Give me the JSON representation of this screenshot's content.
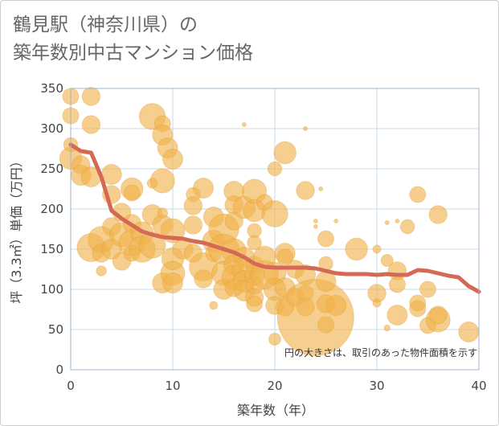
{
  "title": {
    "line1": "鶴見駅（神奈川県）の",
    "line2": "築年数別中古マンション価格"
  },
  "note": "円の大きさは、取引のあった物件面積を示す",
  "colors": {
    "bubble_fill": "#f0b24a",
    "bubble_stroke": "#e09a2e",
    "trend_line": "#d46a55",
    "grid": "#c9d9e8",
    "plot_border": "#9db5cc"
  },
  "chart_data": {
    "type": "scatter",
    "title": "鶴見駅（神奈川県）の築年数別中古マンション価格",
    "xlabel": "築年数（年）",
    "ylabel": "坪（3.3㎡）単価（万円）",
    "xlim": [
      0,
      40
    ],
    "ylim": [
      0,
      350
    ],
    "x_ticks": [
      "0",
      "10",
      "20",
      "30",
      "40"
    ],
    "y_ticks": [
      "0",
      "50",
      "100",
      "150",
      "200",
      "250",
      "300",
      "350"
    ],
    "grid": true,
    "trend": {
      "x": [
        0,
        1,
        2,
        3,
        4,
        5,
        6,
        7,
        8,
        9,
        10,
        11,
        12,
        13,
        14,
        15,
        16,
        17,
        18,
        19,
        20,
        21,
        22,
        23,
        24,
        25,
        26,
        27,
        28,
        29,
        30,
        31,
        32,
        33,
        34,
        35,
        36,
        37,
        38,
        39,
        40
      ],
      "y": [
        280,
        272,
        270,
        240,
        198,
        188,
        180,
        172,
        168,
        165,
        164,
        163,
        160,
        158,
        154,
        150,
        146,
        140,
        132,
        128,
        127,
        127,
        127,
        127,
        126,
        123,
        120,
        119,
        119,
        119,
        118,
        119,
        118,
        118,
        124,
        123,
        120,
        117,
        115,
        104,
        97
      ]
    },
    "points": [
      {
        "x": 0,
        "y": 340,
        "s": 8
      },
      {
        "x": 0,
        "y": 316,
        "s": 8
      },
      {
        "x": 0,
        "y": 263,
        "s": 11
      },
      {
        "x": 0,
        "y": 280,
        "s": 7
      },
      {
        "x": 2,
        "y": 340,
        "s": 9
      },
      {
        "x": 2,
        "y": 305,
        "s": 9
      },
      {
        "x": 1,
        "y": 255,
        "s": 9
      },
      {
        "x": 1,
        "y": 242,
        "s": 10
      },
      {
        "x": 2,
        "y": 240,
        "s": 10
      },
      {
        "x": 2,
        "y": 152,
        "s": 14
      },
      {
        "x": 3,
        "y": 162,
        "s": 13
      },
      {
        "x": 3,
        "y": 145,
        "s": 9
      },
      {
        "x": 3,
        "y": 123,
        "s": 5
      },
      {
        "x": 4,
        "y": 243,
        "s": 10
      },
      {
        "x": 4,
        "y": 218,
        "s": 9
      },
      {
        "x": 4,
        "y": 178,
        "s": 9
      },
      {
        "x": 4,
        "y": 150,
        "s": 10
      },
      {
        "x": 5,
        "y": 168,
        "s": 12
      },
      {
        "x": 5,
        "y": 135,
        "s": 9
      },
      {
        "x": 5,
        "y": 196,
        "s": 9
      },
      {
        "x": 6,
        "y": 225,
        "s": 11
      },
      {
        "x": 6,
        "y": 220,
        "s": 8
      },
      {
        "x": 6,
        "y": 182,
        "s": 9
      },
      {
        "x": 6,
        "y": 158,
        "s": 13
      },
      {
        "x": 6,
        "y": 145,
        "s": 8
      },
      {
        "x": 7,
        "y": 170,
        "s": 11
      },
      {
        "x": 7,
        "y": 150,
        "s": 13
      },
      {
        "x": 8,
        "y": 315,
        "s": 13
      },
      {
        "x": 8,
        "y": 193,
        "s": 10
      },
      {
        "x": 8,
        "y": 155,
        "s": 13
      },
      {
        "x": 8,
        "y": 232,
        "s": 5
      },
      {
        "x": 9,
        "y": 306,
        "s": 8
      },
      {
        "x": 9,
        "y": 292,
        "s": 10
      },
      {
        "x": 9,
        "y": 235,
        "s": 12
      },
      {
        "x": 9,
        "y": 180,
        "s": 10
      },
      {
        "x": 9,
        "y": 195,
        "s": 5
      },
      {
        "x": 9,
        "y": 108,
        "s": 10
      },
      {
        "x": 9.5,
        "y": 276,
        "s": 10
      },
      {
        "x": 10,
        "y": 262,
        "s": 10
      },
      {
        "x": 10,
        "y": 173,
        "s": 12
      },
      {
        "x": 10,
        "y": 138,
        "s": 11
      },
      {
        "x": 10,
        "y": 120,
        "s": 12
      },
      {
        "x": 10,
        "y": 108,
        "s": 10
      },
      {
        "x": 11,
        "y": 150,
        "s": 10
      },
      {
        "x": 12,
        "y": 218,
        "s": 7
      },
      {
        "x": 12,
        "y": 204,
        "s": 9
      },
      {
        "x": 12,
        "y": 180,
        "s": 9
      },
      {
        "x": 12,
        "y": 145,
        "s": 9
      },
      {
        "x": 13,
        "y": 226,
        "s": 10
      },
      {
        "x": 13,
        "y": 128,
        "s": 14
      },
      {
        "x": 13,
        "y": 113,
        "s": 9
      },
      {
        "x": 14,
        "y": 190,
        "s": 10
      },
      {
        "x": 14,
        "y": 160,
        "s": 11
      },
      {
        "x": 14,
        "y": 145,
        "s": 8
      },
      {
        "x": 14,
        "y": 80,
        "s": 4
      },
      {
        "x": 15,
        "y": 175,
        "s": 15
      },
      {
        "x": 15,
        "y": 150,
        "s": 15
      },
      {
        "x": 15,
        "y": 120,
        "s": 12
      },
      {
        "x": 15,
        "y": 100,
        "s": 10
      },
      {
        "x": 16,
        "y": 222,
        "s": 10
      },
      {
        "x": 16,
        "y": 205,
        "s": 9
      },
      {
        "x": 16,
        "y": 185,
        "s": 9
      },
      {
        "x": 16,
        "y": 148,
        "s": 12
      },
      {
        "x": 16,
        "y": 130,
        "s": 10
      },
      {
        "x": 16,
        "y": 115,
        "s": 12
      },
      {
        "x": 16,
        "y": 102,
        "s": 9
      },
      {
        "x": 17,
        "y": 305,
        "s": 2
      },
      {
        "x": 17,
        "y": 202,
        "s": 11
      },
      {
        "x": 17,
        "y": 140,
        "s": 10
      },
      {
        "x": 17,
        "y": 125,
        "s": 12
      },
      {
        "x": 17,
        "y": 110,
        "s": 11
      },
      {
        "x": 17,
        "y": 98,
        "s": 10
      },
      {
        "x": 18,
        "y": 222,
        "s": 12
      },
      {
        "x": 18,
        "y": 198,
        "s": 11
      },
      {
        "x": 18,
        "y": 173,
        "s": 7
      },
      {
        "x": 18,
        "y": 158,
        "s": 7
      },
      {
        "x": 18,
        "y": 130,
        "s": 9
      },
      {
        "x": 18,
        "y": 118,
        "s": 10
      },
      {
        "x": 18,
        "y": 105,
        "s": 9
      },
      {
        "x": 18,
        "y": 90,
        "s": 9
      },
      {
        "x": 18,
        "y": 82,
        "s": 8
      },
      {
        "x": 19,
        "y": 208,
        "s": 8
      },
      {
        "x": 19,
        "y": 140,
        "s": 11
      },
      {
        "x": 19,
        "y": 118,
        "s": 14
      },
      {
        "x": 20,
        "y": 250,
        "s": 7
      },
      {
        "x": 20,
        "y": 194,
        "s": 13
      },
      {
        "x": 20,
        "y": 120,
        "s": 11
      },
      {
        "x": 20,
        "y": 100,
        "s": 11
      },
      {
        "x": 20,
        "y": 80,
        "s": 9
      },
      {
        "x": 20,
        "y": 38,
        "s": 6
      },
      {
        "x": 21,
        "y": 270,
        "s": 11
      },
      {
        "x": 21,
        "y": 145,
        "s": 10
      },
      {
        "x": 21,
        "y": 140,
        "s": 8
      },
      {
        "x": 21,
        "y": 102,
        "s": 10
      },
      {
        "x": 21,
        "y": 78,
        "s": 9
      },
      {
        "x": 22,
        "y": 125,
        "s": 9
      },
      {
        "x": 22,
        "y": 90,
        "s": 9
      },
      {
        "x": 23,
        "y": 300,
        "s": 2
      },
      {
        "x": 23,
        "y": 223,
        "s": 9
      },
      {
        "x": 23,
        "y": 118,
        "s": 10
      },
      {
        "x": 23,
        "y": 95,
        "s": 8
      },
      {
        "x": 23,
        "y": 78,
        "s": 9
      },
      {
        "x": 24,
        "y": 65,
        "s": 38
      },
      {
        "x": 24,
        "y": 185,
        "s": 2
      },
      {
        "x": 24,
        "y": 178,
        "s": 2
      },
      {
        "x": 24.5,
        "y": 225,
        "s": 2
      },
      {
        "x": 25,
        "y": 163,
        "s": 8
      },
      {
        "x": 25,
        "y": 132,
        "s": 7
      },
      {
        "x": 25,
        "y": 110,
        "s": 10
      },
      {
        "x": 25,
        "y": 82,
        "s": 9
      },
      {
        "x": 25,
        "y": 56,
        "s": 8
      },
      {
        "x": 26,
        "y": 185,
        "s": 2
      },
      {
        "x": 26,
        "y": 80,
        "s": 10
      },
      {
        "x": 28,
        "y": 150,
        "s": 11
      },
      {
        "x": 30,
        "y": 150,
        "s": 4
      },
      {
        "x": 30,
        "y": 95,
        "s": 9
      },
      {
        "x": 30,
        "y": 83,
        "s": 4
      },
      {
        "x": 31,
        "y": 183,
        "s": 2
      },
      {
        "x": 31,
        "y": 136,
        "s": 6
      },
      {
        "x": 31,
        "y": 52,
        "s": 3
      },
      {
        "x": 32,
        "y": 185,
        "s": 2
      },
      {
        "x": 32,
        "y": 123,
        "s": 9
      },
      {
        "x": 32,
        "y": 106,
        "s": 8
      },
      {
        "x": 32,
        "y": 68,
        "s": 10
      },
      {
        "x": 33,
        "y": 178,
        "s": 7
      },
      {
        "x": 34,
        "y": 218,
        "s": 8
      },
      {
        "x": 34,
        "y": 83,
        "s": 8
      },
      {
        "x": 34,
        "y": 76,
        "s": 8
      },
      {
        "x": 35,
        "y": 100,
        "s": 8
      },
      {
        "x": 35,
        "y": 55,
        "s": 8
      },
      {
        "x": 36,
        "y": 193,
        "s": 9
      },
      {
        "x": 36,
        "y": 68,
        "s": 9
      },
      {
        "x": 36,
        "y": 62,
        "s": 12
      },
      {
        "x": 39,
        "y": 47,
        "s": 10
      }
    ]
  }
}
